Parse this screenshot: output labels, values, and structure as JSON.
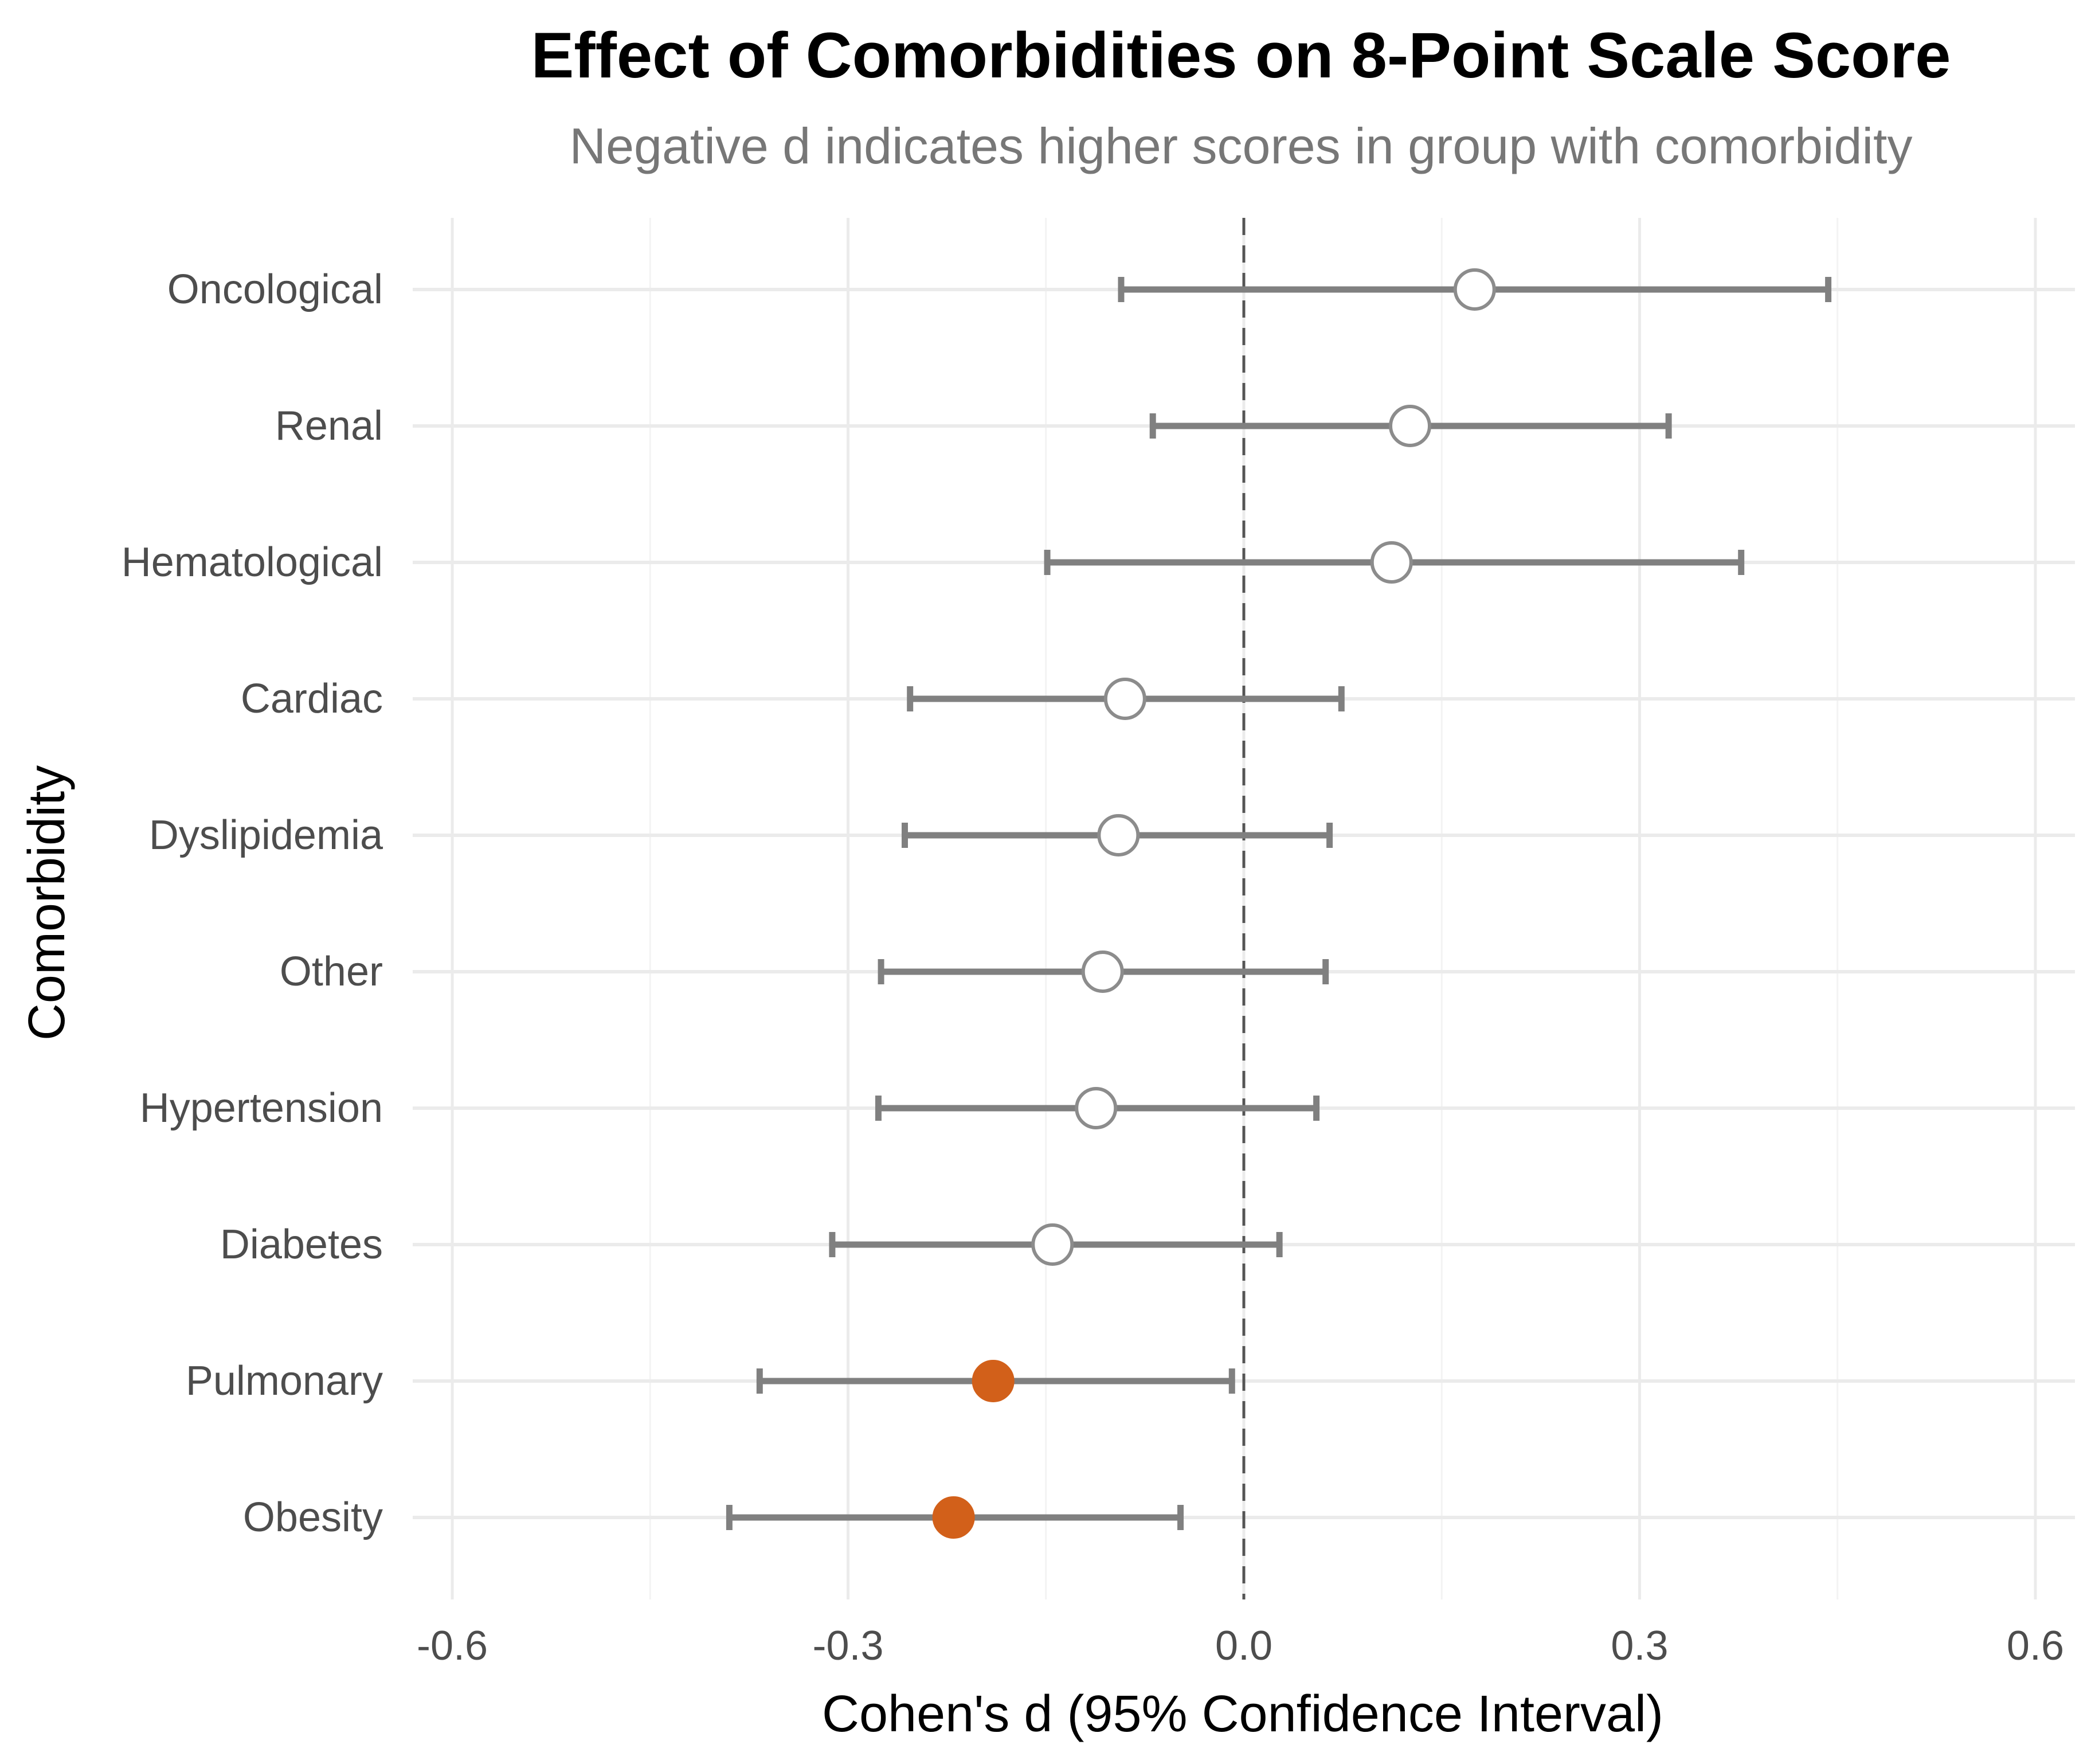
{
  "chart_data": {
    "type": "forest",
    "title": "Effect of Comorbidities on 8-Point Scale Score",
    "subtitle": "Negative d indicates higher scores in group with comorbidity",
    "xlabel": "Cohen's d (95% Confidence Interval)",
    "ylabel": "Comorbidity",
    "xlim": [
      -0.63,
      0.63
    ],
    "xticks": [
      -0.6,
      -0.3,
      0.0,
      0.3,
      0.6
    ],
    "xtick_labels": [
      "-0.6",
      "-0.3",
      "0.0",
      "0.3",
      "0.6"
    ],
    "reference_line": 0.0,
    "grid": true,
    "categories": [
      "Oncological",
      "Renal",
      "Hematological",
      "Cardiac",
      "Dyslipidemia",
      "Other",
      "Hypertension",
      "Diabetes",
      "Pulmonary",
      "Obesity"
    ],
    "estimates": [
      0.175,
      0.126,
      0.112,
      -0.09,
      -0.095,
      -0.107,
      -0.112,
      -0.145,
      -0.19,
      -0.22
    ],
    "ci_lower": [
      -0.093,
      -0.069,
      -0.149,
      -0.253,
      -0.257,
      -0.275,
      -0.277,
      -0.312,
      -0.367,
      -0.39
    ],
    "ci_upper": [
      0.443,
      0.322,
      0.377,
      0.074,
      0.065,
      0.062,
      0.055,
      0.027,
      -0.009,
      -0.048
    ],
    "significant": [
      false,
      false,
      false,
      false,
      false,
      false,
      false,
      false,
      true,
      true
    ],
    "colors": {
      "significant": "#d2601a",
      "nonsignificant_fill": "#ffffff",
      "point_stroke": "#8c8c8c",
      "errorbar": "#808080",
      "grid": "#ebebeb",
      "refline": "#555555"
    }
  }
}
